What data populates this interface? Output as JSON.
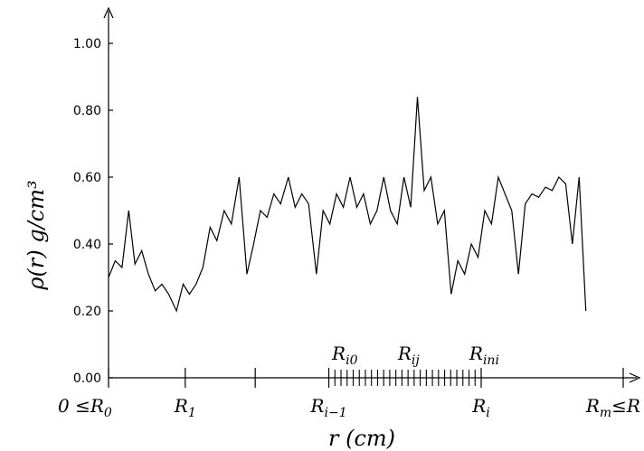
{
  "chart_data": {
    "type": "line",
    "title": "",
    "xlabel": "r  (cm)",
    "ylabel": "ρ(r)  g/cm³",
    "ylim": [
      0,
      1.05
    ],
    "xlim": [
      0,
      100
    ],
    "yticks": [
      {
        "value": 0.0,
        "label": "0.00"
      },
      {
        "value": 0.2,
        "label": "0.20"
      },
      {
        "value": 0.4,
        "label": "0.40"
      },
      {
        "value": 0.6,
        "label": "0.60"
      },
      {
        "value": 0.8,
        "label": "0.80"
      },
      {
        "value": 1.0,
        "label": "1.00"
      }
    ],
    "xticks": [
      {
        "value": 0,
        "label": "0 ≤R0",
        "main": "0 ≤R",
        "sub": "0"
      },
      {
        "value": 14.8,
        "label": "R1",
        "main": "R",
        "sub": "1"
      },
      {
        "value": 28.3,
        "label": "",
        "main": "",
        "sub": ""
      },
      {
        "value": 42.5,
        "label": "Ri−1",
        "main": "R",
        "sub": "i−1"
      },
      {
        "value": 71.9,
        "label": "Ri",
        "main": "R",
        "sub": "i"
      },
      {
        "value": 99.3,
        "label": "Rm≤R",
        "main": "R",
        "sub": "m",
        "after": "≤R"
      }
    ],
    "minor_ticks": {
      "from": 42.5,
      "to": 71.9,
      "count": 25
    },
    "sub_labels": [
      {
        "value": 45.6,
        "main": "R",
        "sub": "i0",
        "label": "Ri0"
      },
      {
        "value": 57.9,
        "main": "R",
        "sub": "ij",
        "label": "Rij"
      },
      {
        "value": 72.5,
        "main": "R",
        "sub": "ini",
        "label": "Rini"
      }
    ],
    "series": [
      {
        "color": "#000000",
        "points": [
          [
            0,
            0.3
          ],
          [
            1.3,
            0.35
          ],
          [
            2.6,
            0.33
          ],
          [
            3.9,
            0.5
          ],
          [
            5.1,
            0.34
          ],
          [
            6.4,
            0.38
          ],
          [
            7.7,
            0.31
          ],
          [
            9.0,
            0.26
          ],
          [
            10.3,
            0.28
          ],
          [
            11.6,
            0.25
          ],
          [
            13.1,
            0.2
          ],
          [
            14.4,
            0.28
          ],
          [
            15.6,
            0.25
          ],
          [
            16.9,
            0.28
          ],
          [
            18.2,
            0.33
          ],
          [
            19.6,
            0.45
          ],
          [
            20.9,
            0.41
          ],
          [
            22.3,
            0.5
          ],
          [
            23.7,
            0.46
          ],
          [
            25.2,
            0.6
          ],
          [
            26.7,
            0.31
          ],
          [
            28.0,
            0.4
          ],
          [
            29.3,
            0.5
          ],
          [
            30.6,
            0.48
          ],
          [
            31.9,
            0.55
          ],
          [
            33.2,
            0.52
          ],
          [
            34.7,
            0.6
          ],
          [
            36.0,
            0.51
          ],
          [
            37.3,
            0.55
          ],
          [
            38.6,
            0.52
          ],
          [
            40.1,
            0.31
          ],
          [
            41.4,
            0.5
          ],
          [
            42.7,
            0.46
          ],
          [
            44.0,
            0.55
          ],
          [
            45.3,
            0.51
          ],
          [
            46.6,
            0.6
          ],
          [
            47.9,
            0.51
          ],
          [
            49.2,
            0.55
          ],
          [
            50.5,
            0.46
          ],
          [
            51.8,
            0.5
          ],
          [
            53.1,
            0.6
          ],
          [
            54.4,
            0.5
          ],
          [
            55.7,
            0.46
          ],
          [
            57.0,
            0.6
          ],
          [
            58.3,
            0.51
          ],
          [
            59.6,
            0.84
          ],
          [
            60.9,
            0.56
          ],
          [
            62.2,
            0.6
          ],
          [
            63.5,
            0.46
          ],
          [
            64.8,
            0.5
          ],
          [
            66.1,
            0.25
          ],
          [
            67.4,
            0.35
          ],
          [
            68.7,
            0.31
          ],
          [
            70.0,
            0.4
          ],
          [
            71.3,
            0.36
          ],
          [
            72.6,
            0.5
          ],
          [
            73.9,
            0.46
          ],
          [
            75.2,
            0.6
          ],
          [
            77.8,
            0.5
          ],
          [
            79.1,
            0.31
          ],
          [
            80.4,
            0.52
          ],
          [
            81.7,
            0.55
          ],
          [
            83.0,
            0.54
          ],
          [
            84.3,
            0.57
          ],
          [
            85.6,
            0.56
          ],
          [
            86.9,
            0.6
          ],
          [
            88.2,
            0.58
          ],
          [
            89.5,
            0.4
          ],
          [
            90.8,
            0.6
          ],
          [
            92.1,
            0.2
          ]
        ]
      }
    ]
  }
}
